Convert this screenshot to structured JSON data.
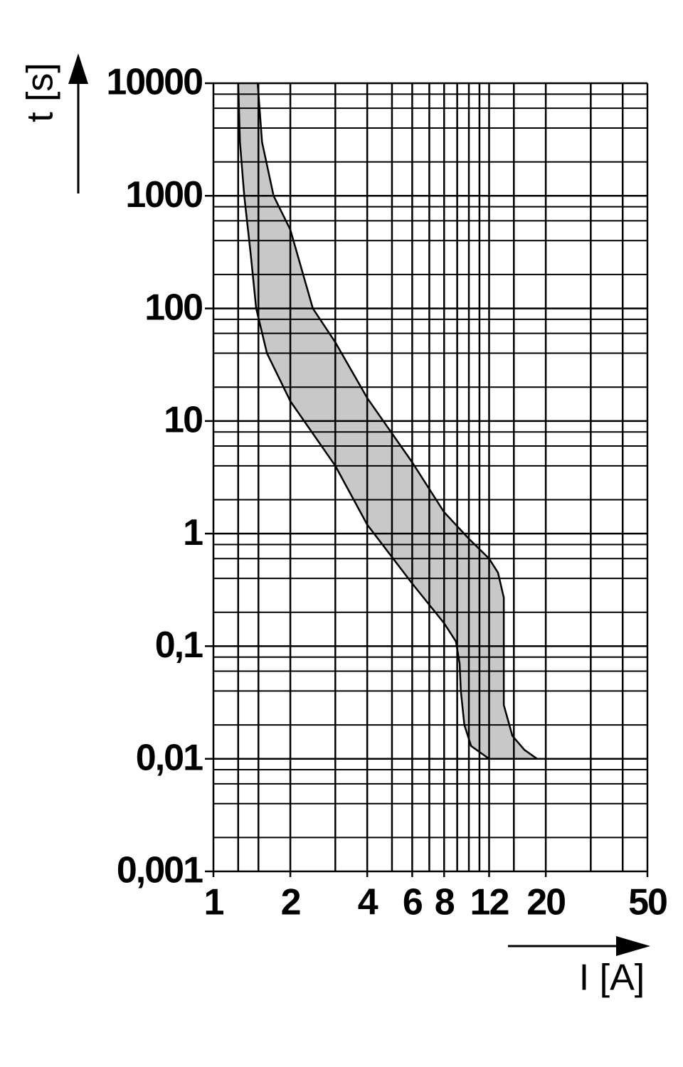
{
  "chart_data": {
    "type": "band",
    "ylabel": "t [s]",
    "xlabel": "I [A]",
    "xscale": "log",
    "yscale": "log",
    "xlim": [
      1,
      50
    ],
    "ylim": [
      0.001,
      10000
    ],
    "xticks": [
      1,
      2,
      4,
      6,
      8,
      12,
      20,
      50
    ],
    "yticks": [
      {
        "value": 0.001,
        "label": "0,001"
      },
      {
        "value": 0.01,
        "label": "0,01"
      },
      {
        "value": 0.1,
        "label": "0,1"
      },
      1,
      10,
      100,
      1000,
      10000
    ],
    "xgrid": [
      1,
      1.25,
      1.5,
      2,
      3,
      4,
      5,
      6,
      7,
      8,
      9,
      10,
      11,
      12,
      15,
      20,
      30,
      40,
      50
    ],
    "y_minor_grid": [
      2,
      4,
      6,
      8
    ],
    "fill": "#c8c8c8",
    "series": [
      {
        "color": "#000000",
        "x": [
          1.25,
          1.27,
          1.32,
          1.4,
          1.47,
          1.62,
          2,
          3,
          4,
          6,
          8,
          8.9,
          9.2,
          9.3,
          9.6,
          10.2,
          12
        ],
        "values": [
          10000,
          3000,
          1000,
          300,
          100,
          40,
          15,
          4,
          1.2,
          0.36,
          0.16,
          0.11,
          0.07,
          0.04,
          0.02,
          0.013,
          0.01
        ]
      },
      {
        "color": "#000000",
        "x": [
          1.49,
          1.55,
          1.72,
          2,
          2.45,
          3,
          4,
          6,
          8,
          10,
          12,
          13,
          13.7,
          13.7,
          13.7,
          14.8,
          16.5,
          18.5
        ],
        "values": [
          10000,
          3000,
          1000,
          500,
          100,
          50,
          16,
          4.3,
          1.55,
          0.9,
          0.6,
          0.45,
          0.27,
          0.1,
          0.03,
          0.016,
          0.012,
          0.01
        ]
      }
    ]
  }
}
